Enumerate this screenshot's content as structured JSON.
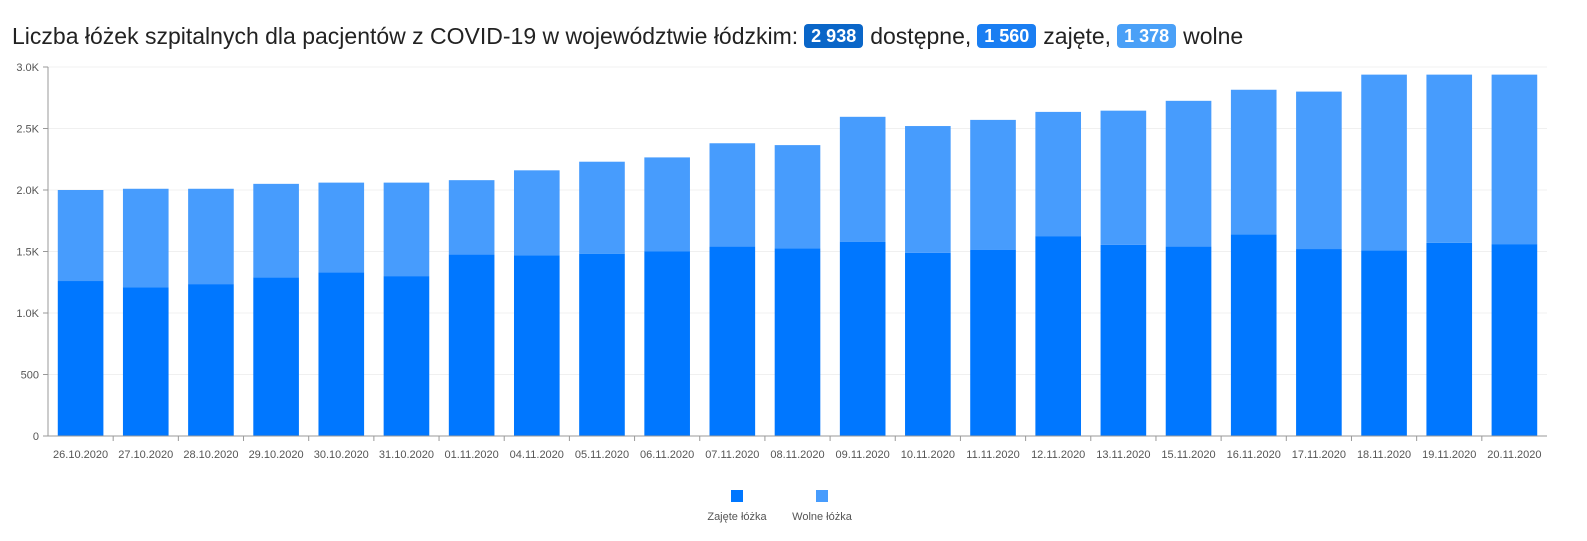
{
  "header": {
    "title": "Liczba łóżek szpitalnych dla pacjentów z COVID-19 w województwie łódzkim:",
    "badges": [
      {
        "value": "2 938",
        "label": "dostępne,",
        "color": "#0a66c8"
      },
      {
        "value": "1 560",
        "label": "zajęte,",
        "color": "#1a7ef2"
      },
      {
        "value": "1 378",
        "label": "wolne",
        "color": "#4aa0f7"
      }
    ]
  },
  "chart_data": {
    "type": "bar",
    "stacked": true,
    "categories": [
      "26.10.2020",
      "27.10.2020",
      "28.10.2020",
      "29.10.2020",
      "30.10.2020",
      "31.10.2020",
      "01.11.2020",
      "04.11.2020",
      "05.11.2020",
      "06.11.2020",
      "07.11.2020",
      "08.11.2020",
      "09.11.2020",
      "10.11.2020",
      "11.11.2020",
      "12.11.2020",
      "13.11.2020",
      "15.11.2020",
      "16.11.2020",
      "17.11.2020",
      "18.11.2020",
      "19.11.2020",
      "20.11.2020"
    ],
    "series": [
      {
        "name": "Zajęte łóżka",
        "color": "#0077ff",
        "values": [
          1260,
          1210,
          1235,
          1290,
          1330,
          1300,
          1475,
          1470,
          1480,
          1500,
          1540,
          1525,
          1580,
          1490,
          1515,
          1625,
          1555,
          1540,
          1640,
          1520,
          1510,
          1570,
          1560
        ]
      },
      {
        "name": "Wolne łóżka",
        "color": "#479cfd",
        "values": [
          740,
          800,
          775,
          760,
          730,
          760,
          605,
          690,
          750,
          765,
          840,
          840,
          1015,
          1030,
          1055,
          1010,
          1090,
          1185,
          1175,
          1280,
          1428,
          1368,
          1378
        ]
      }
    ],
    "ylim": [
      0,
      3000
    ],
    "yticks": [
      0,
      500,
      1000,
      1500,
      2000,
      2500,
      3000
    ],
    "ytick_labels": [
      "0",
      "500",
      "1.0K",
      "1.5K",
      "2.0K",
      "2.5K",
      "3.0K"
    ],
    "grid": true,
    "legend_position": "bottom-center"
  }
}
